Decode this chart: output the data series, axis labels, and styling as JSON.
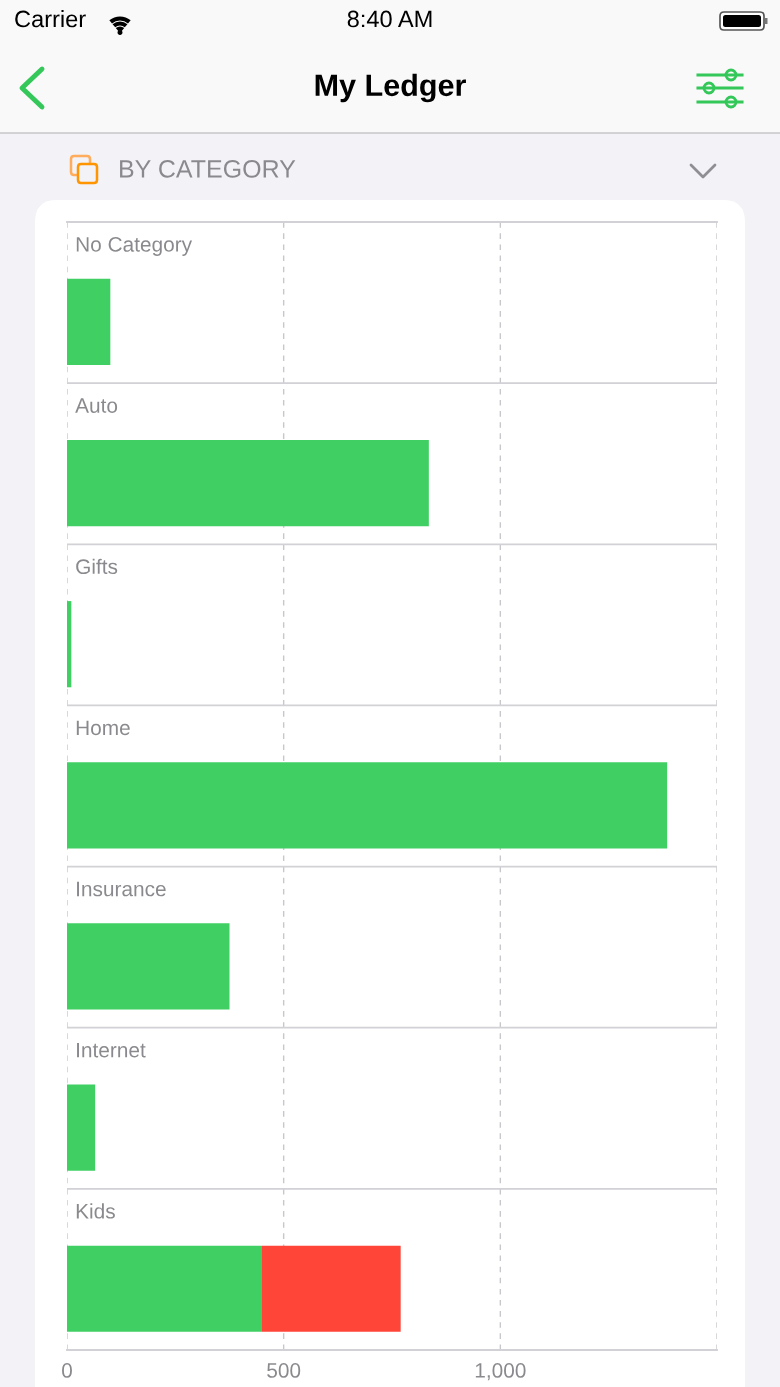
{
  "chart_data": {
    "type": "bar",
    "orientation": "horizontal",
    "stacked": true,
    "title": "My Ledger",
    "subtitle": "BY CATEGORY",
    "annotations": [
      "Carrier",
      "8:40 AM"
    ],
    "categories": [
      "No Category",
      "Auto",
      "Gifts",
      "Home",
      "Insurance",
      "Internet",
      "Kids"
    ],
    "series": [
      {
        "color": "#40cf63",
        "values": [
          100,
          835,
          10,
          1385,
          375,
          65,
          450
        ]
      },
      {
        "color": "#ff4438",
        "values": [
          null,
          null,
          null,
          null,
          null,
          null,
          320
        ]
      }
    ],
    "xlim": [
      0,
      1500
    ],
    "xticks": [
      0,
      500,
      {
        "value": 1000,
        "label": "1,000"
      },
      {
        "value": 1500,
        "label": null
      }
    ],
    "grid": "x"
  }
}
